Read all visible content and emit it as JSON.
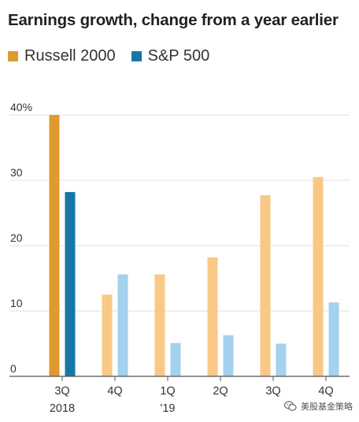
{
  "chart_data": {
    "type": "bar",
    "title": "Earnings growth, change from a year earlier",
    "y_ticks": [
      {
        "value": 40,
        "label": "40%"
      },
      {
        "value": 30,
        "label": "30"
      },
      {
        "value": 20,
        "label": "20"
      },
      {
        "value": 10,
        "label": "10"
      },
      {
        "value": 0,
        "label": "0"
      }
    ],
    "ylim": [
      0,
      40
    ],
    "grid": true,
    "legend_position": "top-left",
    "categories": [
      {
        "line1": "3Q",
        "line2": "2018"
      },
      {
        "line1": "4Q",
        "line2": ""
      },
      {
        "line1": "1Q",
        "line2": "'19"
      },
      {
        "line1": "2Q",
        "line2": ""
      },
      {
        "line1": "3Q",
        "line2": ""
      },
      {
        "line1": "4Q",
        "line2": ""
      }
    ],
    "series": [
      {
        "name": "Russell 2000",
        "color": "#DE9A2E",
        "values": [
          40,
          12.5,
          15.6,
          18.2,
          27.7,
          30.5
        ],
        "bar_colors": [
          "#DE9A2E",
          "#F8C986",
          "#F8C986",
          "#F8C986",
          "#F8C986",
          "#F8C986"
        ]
      },
      {
        "name": "S&P 500",
        "color": "#1677A6",
        "values": [
          28.2,
          15.6,
          5.1,
          6.3,
          5.0,
          11.3
        ],
        "bar_colors": [
          "#1677A6",
          "#A3D1EE",
          "#A3D1EE",
          "#A3D1EE",
          "#A3D1EE",
          "#A3D1EE"
        ]
      }
    ]
  },
  "watermark": {
    "text": "美股基金策略",
    "icon": "wechat-icon"
  }
}
